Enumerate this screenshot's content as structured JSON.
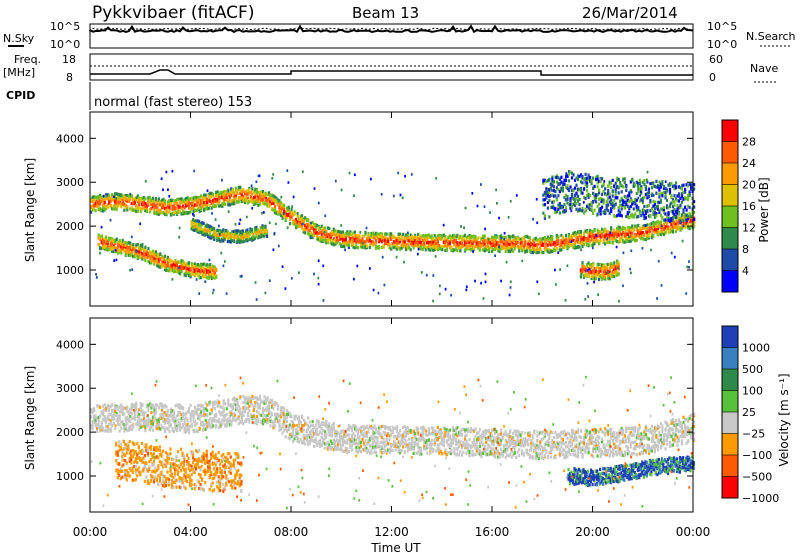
{
  "header": {
    "station": "Pykkvibaer (fitACF)",
    "beam": "Beam 13",
    "date": "26/Mar/2014"
  },
  "aux_panels": {
    "nsky_label": "N.Sky",
    "nsearch_label": "N.Search",
    "nsky_ticks": [
      "10^5",
      "10^0"
    ],
    "nsearch_ticks": [
      "10^5",
      "10^0"
    ],
    "freq_label_line1": "Freq.",
    "freq_label_line2": "[MHz]",
    "freq_ticks": [
      "18",
      "8"
    ],
    "nave_label": "Nave",
    "nave_ticks": [
      "60",
      "0"
    ],
    "cpid_label": "CPID",
    "cpid_text": "normal (fast stereo) 153"
  },
  "chart_data": [
    {
      "type": "heatmap",
      "name": "power-panel",
      "xlabel": "Time UT",
      "ylabel": "Slant Range [km]",
      "x_ticks": [
        "00:00",
        "04:00",
        "08:00",
        "12:00",
        "16:00",
        "20:00",
        "00:00"
      ],
      "xlim_hours": [
        0,
        24
      ],
      "y_ticks": [
        1000,
        2000,
        3000,
        4000
      ],
      "ylim": [
        180,
        4600
      ],
      "colorbar": {
        "label": "Power [dB]",
        "ticks": [
          "28",
          "24",
          "20",
          "16",
          "12",
          "8",
          "4"
        ],
        "colors": [
          "#ff0000",
          "#ff5a00",
          "#ff9a00",
          "#ddc000",
          "#6fbf20",
          "#2f8a4a",
          "#1f4aa8",
          "#0000ff"
        ]
      },
      "echo_bands": [
        {
          "range_km": [
            [
              0,
              2500
            ],
            [
              1,
              2560
            ],
            [
              2,
              2500
            ],
            [
              3,
              2420
            ],
            [
              4,
              2480
            ],
            [
              5,
              2600
            ],
            [
              6,
              2720
            ],
            [
              7,
              2620
            ],
            [
              8,
              2200
            ],
            [
              9,
              1850
            ],
            [
              10,
              1700
            ],
            [
              12,
              1650
            ],
            [
              14,
              1620
            ],
            [
              16,
              1600
            ],
            [
              17,
              1600
            ],
            [
              18,
              1560
            ],
            [
              19,
              1650
            ],
            [
              20,
              1750
            ],
            [
              22,
              1850
            ],
            [
              24,
              2150
            ]
          ],
          "width_km": 200,
          "level": "high"
        },
        {
          "range_km": [
            [
              0.3,
              1650
            ],
            [
              1,
              1550
            ],
            [
              2,
              1400
            ],
            [
              3,
              1150
            ],
            [
              4,
              1000
            ],
            [
              5,
              950
            ]
          ],
          "width_km": 180,
          "level": "high"
        },
        {
          "range_km": [
            [
              4,
              2050
            ],
            [
              5,
              1800
            ],
            [
              6,
              1750
            ],
            [
              7,
              1900
            ]
          ],
          "width_km": 150,
          "level": "medium"
        },
        {
          "range_km": [
            [
              18,
              2600
            ],
            [
              19,
              2800
            ],
            [
              20,
              2700
            ],
            [
              22,
              2600
            ],
            [
              24,
              2500
            ]
          ],
          "width_km": 500,
          "level": "low"
        },
        {
          "range_km": [
            [
              19.5,
              1000
            ],
            [
              20.5,
              950
            ],
            [
              21,
              1050
            ]
          ],
          "width_km": 200,
          "level": "high"
        }
      ]
    },
    {
      "type": "heatmap",
      "name": "velocity-panel",
      "xlabel": "Time UT",
      "ylabel": "Slant Range [km]",
      "x_ticks": [
        "00:00",
        "04:00",
        "08:00",
        "12:00",
        "16:00",
        "20:00",
        "00:00"
      ],
      "xlim_hours": [
        0,
        24
      ],
      "y_ticks": [
        1000,
        2000,
        3000,
        4000
      ],
      "ylim": [
        180,
        4600
      ],
      "colorbar": {
        "label": "Velocity [m s⁻¹]",
        "ticks": [
          "1000",
          "500",
          "100",
          "25",
          "−25",
          "−100",
          "−500",
          "−1000"
        ],
        "colors": [
          "#1f3fb8",
          "#3a7fc0",
          "#2f8a4a",
          "#57c13a",
          "#c8c8c8",
          "#ff9a00",
          "#ff5a00",
          "#ff0000"
        ]
      },
      "echo_bands": [
        {
          "range_km": [
            [
              0,
              2300
            ],
            [
              2,
              2350
            ],
            [
              4,
              2300
            ],
            [
              6,
              2500
            ],
            [
              7,
              2500
            ],
            [
              8,
              2100
            ],
            [
              10,
              1850
            ],
            [
              14,
              1800
            ],
            [
              18,
              1700
            ],
            [
              22,
              1800
            ],
            [
              24,
              2100
            ]
          ],
          "width_km": 350,
          "level": "ground"
        },
        {
          "range_km": [
            [
              1,
              1400
            ],
            [
              2,
              1300
            ],
            [
              3,
              1200
            ],
            [
              4,
              1150
            ],
            [
              5,
              1100
            ],
            [
              6,
              1100
            ]
          ],
          "width_km": 500,
          "level": "negative"
        },
        {
          "range_km": [
            [
              19,
              1000
            ],
            [
              20,
              950
            ],
            [
              21,
              1050
            ],
            [
              22.5,
              1200
            ],
            [
              24,
              1300
            ]
          ],
          "width_km": 200,
          "level": "positive"
        }
      ]
    }
  ]
}
